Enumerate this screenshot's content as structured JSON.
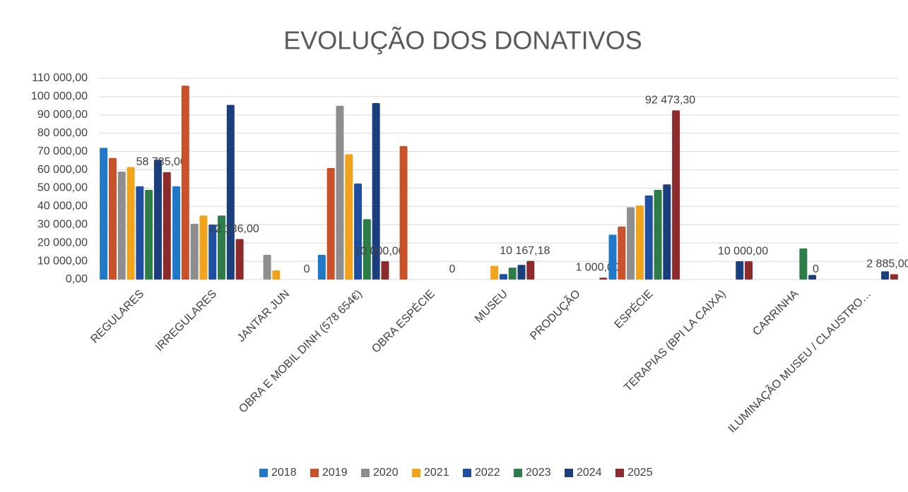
{
  "chart_data": {
    "type": "bar",
    "title": "EVOLUÇÃO DOS DONATIVOS",
    "categories": [
      "REGULARES",
      "IRREGULARES",
      "JANTAR JUN",
      "OBRA E MOBIL DINH (578 654€)",
      "OBRA ESPÉCIE",
      "MUSEU",
      "PRODUÇÃO",
      "ESPÉCIE",
      "TERAPIAS (BPI LA CAIXA)",
      "CARRINHA",
      "ILUMINAÇÃO MUSEU / CLAUSTRO…"
    ],
    "series": [
      {
        "name": "2018",
        "color": "#1f78c8",
        "values": [
          72000,
          51000,
          null,
          13500,
          null,
          null,
          null,
          24500,
          null,
          null,
          null
        ]
      },
      {
        "name": "2019",
        "color": "#c9522b",
        "values": [
          66500,
          106000,
          null,
          61000,
          73000,
          null,
          null,
          29000,
          null,
          null,
          null
        ]
      },
      {
        "name": "2020",
        "color": "#8e8e8e",
        "values": [
          59000,
          30500,
          13500,
          95000,
          null,
          null,
          null,
          39500,
          null,
          null,
          null
        ]
      },
      {
        "name": "2021",
        "color": "#f2a31c",
        "values": [
          61500,
          35000,
          5000,
          68500,
          null,
          7500,
          null,
          40500,
          null,
          null,
          null
        ]
      },
      {
        "name": "2022",
        "color": "#1f4fa0",
        "values": [
          51000,
          30000,
          null,
          52500,
          null,
          3000,
          null,
          46000,
          null,
          null,
          null
        ]
      },
      {
        "name": "2023",
        "color": "#2e7d48",
        "values": [
          49000,
          35000,
          null,
          33000,
          null,
          6500,
          null,
          49000,
          null,
          17000,
          null
        ]
      },
      {
        "name": "2024",
        "color": "#1b3f7c",
        "values": [
          65500,
          95500,
          null,
          96500,
          null,
          8000,
          null,
          52000,
          10000,
          2500,
          4500
        ]
      },
      {
        "name": "2025",
        "color": "#8c2a2c",
        "values": [
          58735,
          22136,
          0,
          10000,
          0,
          10167.18,
          1000,
          92473.3,
          10000,
          0,
          2885
        ],
        "value_labels": [
          "58 735,00",
          "22 136,00",
          "0",
          "10 000,00",
          "0",
          "10 167,18",
          "1 000,00",
          "92 473,30",
          "10 000,00",
          "0",
          "2 885,00"
        ]
      }
    ],
    "ylim": [
      0,
      110000
    ],
    "yticks": [
      {
        "value": 0,
        "label": "0,00"
      },
      {
        "value": 10000,
        "label": "10 000,00"
      },
      {
        "value": 20000,
        "label": "20 000,00"
      },
      {
        "value": 30000,
        "label": "30 000,00"
      },
      {
        "value": 40000,
        "label": "40 000,00"
      },
      {
        "value": 50000,
        "label": "50 000,00"
      },
      {
        "value": 60000,
        "label": "60 000,00"
      },
      {
        "value": 70000,
        "label": "70 000,00"
      },
      {
        "value": 80000,
        "label": "80 000,00"
      },
      {
        "value": 90000,
        "label": "90 000,00"
      },
      {
        "value": 100000,
        "label": "100 000,00"
      },
      {
        "value": 110000,
        "label": "110 000,00"
      }
    ],
    "grid": true,
    "legend": "bottom"
  }
}
